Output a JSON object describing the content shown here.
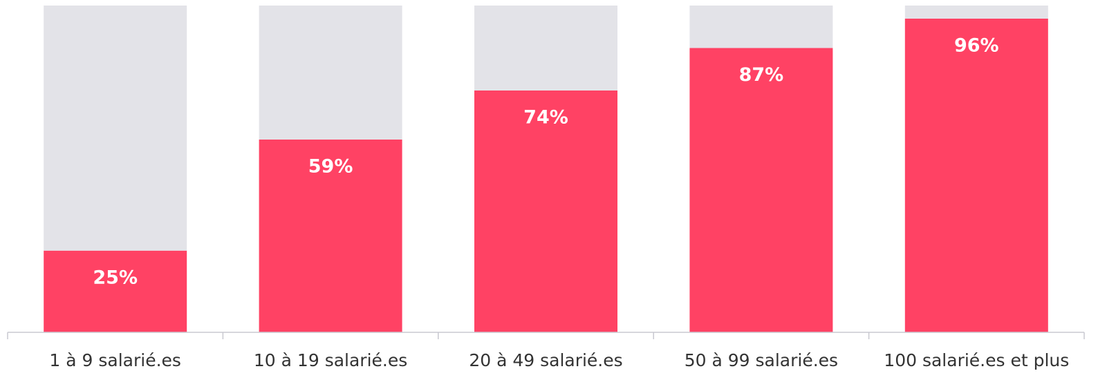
{
  "chart_data": {
    "type": "stacked_bar",
    "categories": [
      "1 à 9 salarié.es",
      "10 à 19 salarié.es",
      "20 à 49 salarié.es",
      "50 à 99 salarié.es",
      "100 salarié.es et plus"
    ],
    "series": [
      {
        "color": "#ff4264",
        "values": [
          25,
          59,
          74,
          87,
          96
        ],
        "value_labels": [
          "25%",
          "59%",
          "74%",
          "87%",
          "96%"
        ]
      },
      {
        "color": "#e3e3e8",
        "values": [
          75,
          41,
          26,
          13,
          4
        ]
      }
    ],
    "ylim": [
      0,
      100
    ]
  }
}
